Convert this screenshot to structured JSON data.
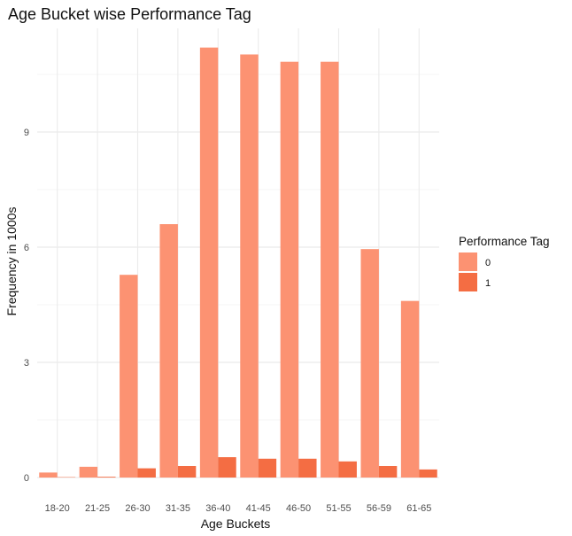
{
  "chart_data": {
    "type": "bar",
    "title": "Age Bucket wise Performance Tag",
    "xlabel": "Age Buckets",
    "ylabel": "Frequency in 1000s",
    "categories": [
      "18-20",
      "21-25",
      "26-30",
      "31-35",
      "36-40",
      "41-45",
      "46-50",
      "51-55",
      "56-59",
      "61-65"
    ],
    "series": [
      {
        "name": "0",
        "values": [
          0.13,
          0.28,
          5.28,
          6.6,
          11.2,
          11.02,
          10.83,
          10.83,
          5.95,
          4.6
        ],
        "color": "#fc9272"
      },
      {
        "name": "1",
        "values": [
          0.01,
          0.02,
          0.24,
          0.3,
          0.53,
          0.49,
          0.49,
          0.42,
          0.3,
          0.21
        ],
        "color": "#f46d43"
      }
    ],
    "ylim": [
      0,
      11.7
    ],
    "y_ticks": [
      0,
      3,
      6,
      9
    ],
    "grid": true,
    "legend": {
      "title": "Performance Tag",
      "position": "right"
    }
  }
}
